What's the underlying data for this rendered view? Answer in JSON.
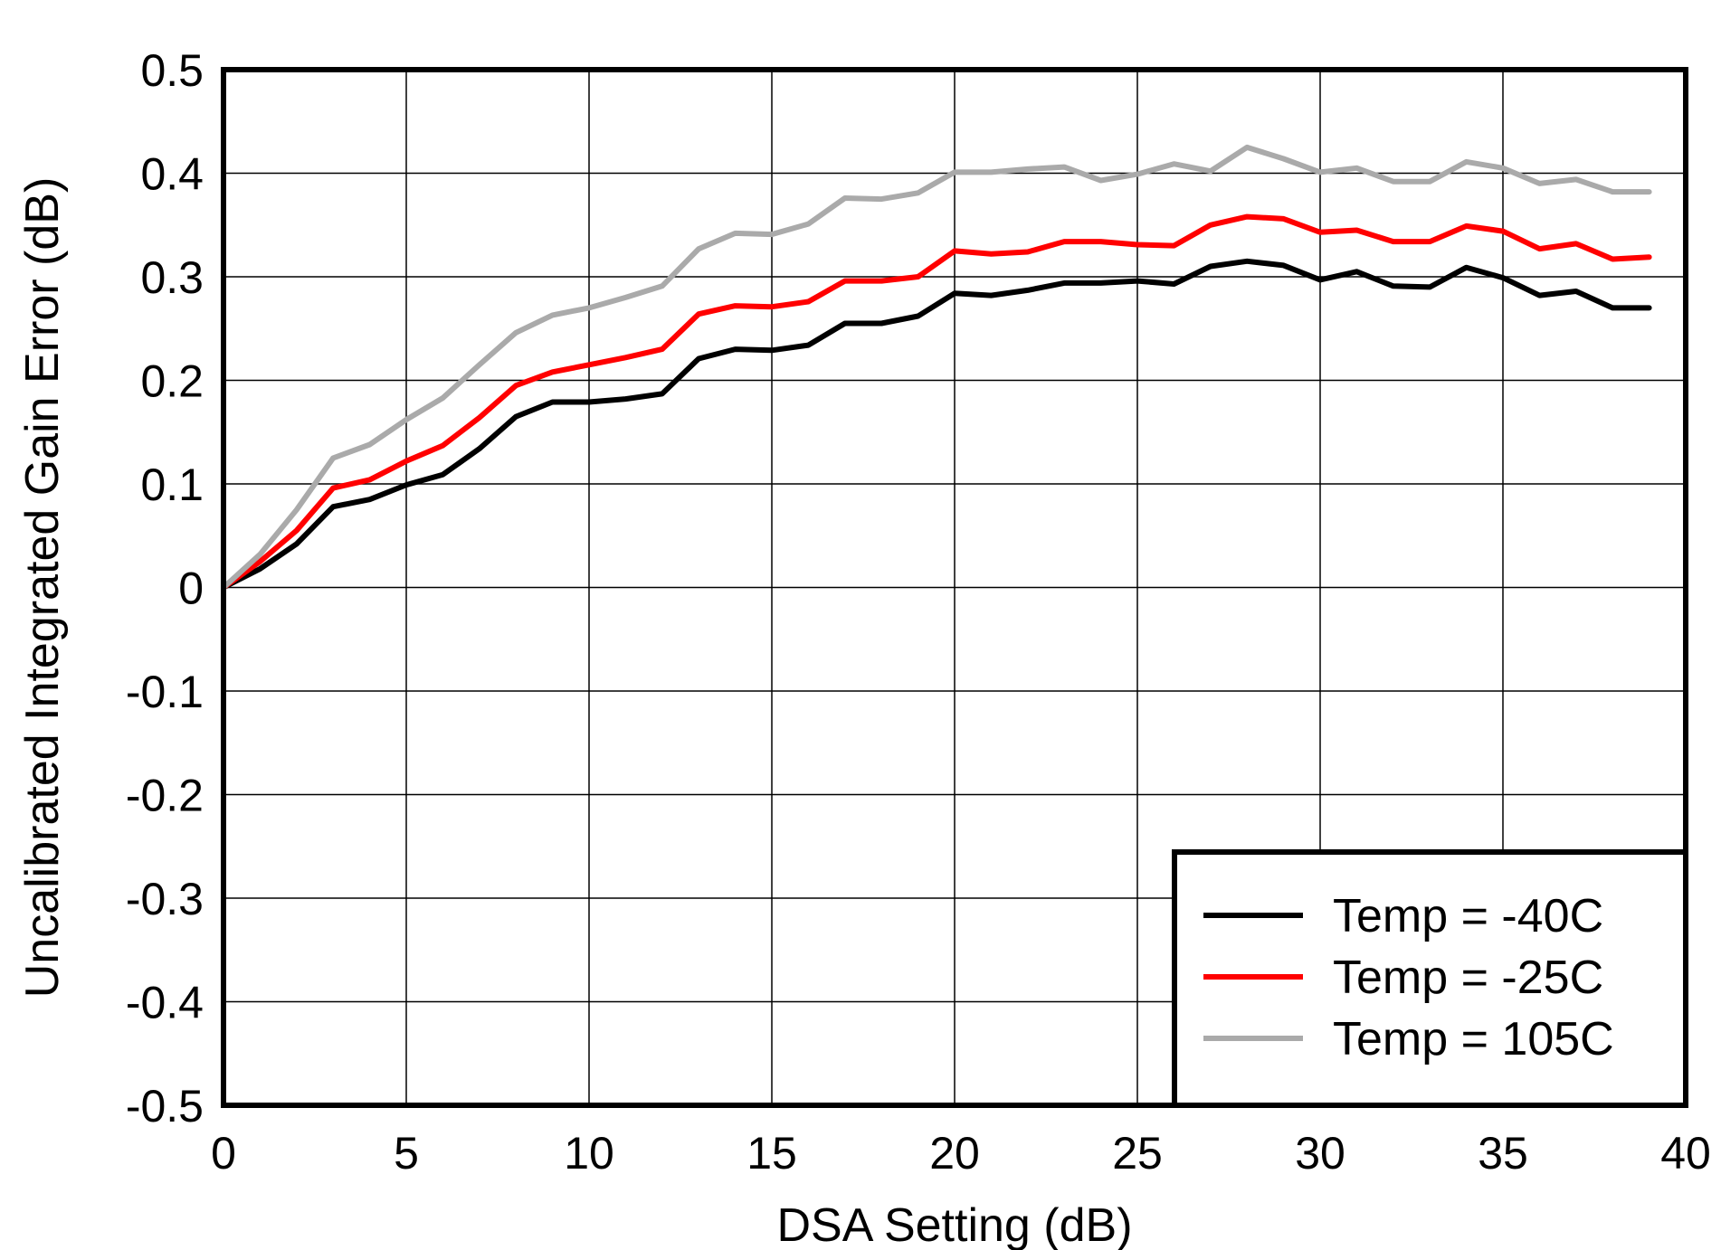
{
  "chart_data": {
    "type": "line",
    "title": "",
    "xlabel": "DSA Setting (dB)",
    "ylabel": "Uncalibrated Integrated Gain Error (dB)",
    "xlim": [
      0,
      40
    ],
    "ylim": [
      -0.5,
      0.5
    ],
    "xticks": [
      0,
      5,
      10,
      15,
      20,
      25,
      30,
      35,
      40
    ],
    "yticks": [
      -0.5,
      -0.4,
      -0.3,
      -0.2,
      -0.1,
      0,
      0.1,
      0.2,
      0.3,
      0.4,
      0.5
    ],
    "xtick_labels": [
      "0",
      "5",
      "10",
      "15",
      "20",
      "25",
      "30",
      "35",
      "40"
    ],
    "ytick_labels": [
      "-0.5",
      "-0.4",
      "-0.3",
      "-0.2",
      "-0.1",
      "0",
      "0.1",
      "0.2",
      "0.3",
      "0.4",
      "0.5"
    ],
    "grid": true,
    "legend_position": "bottom-right",
    "x": [
      0,
      1,
      2,
      3,
      4,
      5,
      6,
      7,
      8,
      9,
      10,
      11,
      12,
      13,
      14,
      15,
      16,
      17,
      18,
      19,
      20,
      21,
      22,
      23,
      24,
      25,
      26,
      27,
      28,
      29,
      30,
      31,
      32,
      33,
      34,
      35,
      36,
      37,
      38,
      39
    ],
    "series": [
      {
        "name": "Temp = -40C",
        "color": "#000000",
        "values": [
          0,
          0.018,
          0.042,
          0.078,
          0.085,
          0.099,
          0.109,
          0.134,
          0.165,
          0.179,
          0.179,
          0.182,
          0.187,
          0.221,
          0.23,
          0.229,
          0.234,
          0.255,
          0.255,
          0.262,
          0.284,
          0.282,
          0.287,
          0.294,
          0.294,
          0.296,
          0.293,
          0.31,
          0.315,
          0.311,
          0.297,
          0.305,
          0.291,
          0.29,
          0.309,
          0.299,
          0.282,
          0.286,
          0.27,
          0.27
        ]
      },
      {
        "name": "Temp = -25C",
        "color": "#ff0000",
        "values": [
          0,
          0.025,
          0.055,
          0.096,
          0.104,
          0.122,
          0.137,
          0.164,
          0.195,
          0.208,
          0.215,
          0.222,
          0.23,
          0.264,
          0.272,
          0.271,
          0.276,
          0.296,
          0.296,
          0.3,
          0.325,
          0.322,
          0.324,
          0.334,
          0.334,
          0.331,
          0.33,
          0.35,
          0.358,
          0.356,
          0.343,
          0.345,
          0.334,
          0.334,
          0.349,
          0.344,
          0.327,
          0.332,
          0.317,
          0.319
        ]
      },
      {
        "name": "Temp = 105C",
        "color": "#aaaaaa",
        "values": [
          0,
          0.032,
          0.075,
          0.125,
          0.138,
          0.162,
          0.183,
          0.215,
          0.246,
          0.263,
          0.27,
          0.28,
          0.291,
          0.327,
          0.342,
          0.341,
          0.351,
          0.376,
          0.375,
          0.381,
          0.401,
          0.401,
          0.404,
          0.406,
          0.393,
          0.399,
          0.409,
          0.402,
          0.425,
          0.414,
          0.401,
          0.405,
          0.392,
          0.392,
          0.411,
          0.405,
          0.39,
          0.394,
          0.382,
          0.382
        ]
      }
    ]
  }
}
